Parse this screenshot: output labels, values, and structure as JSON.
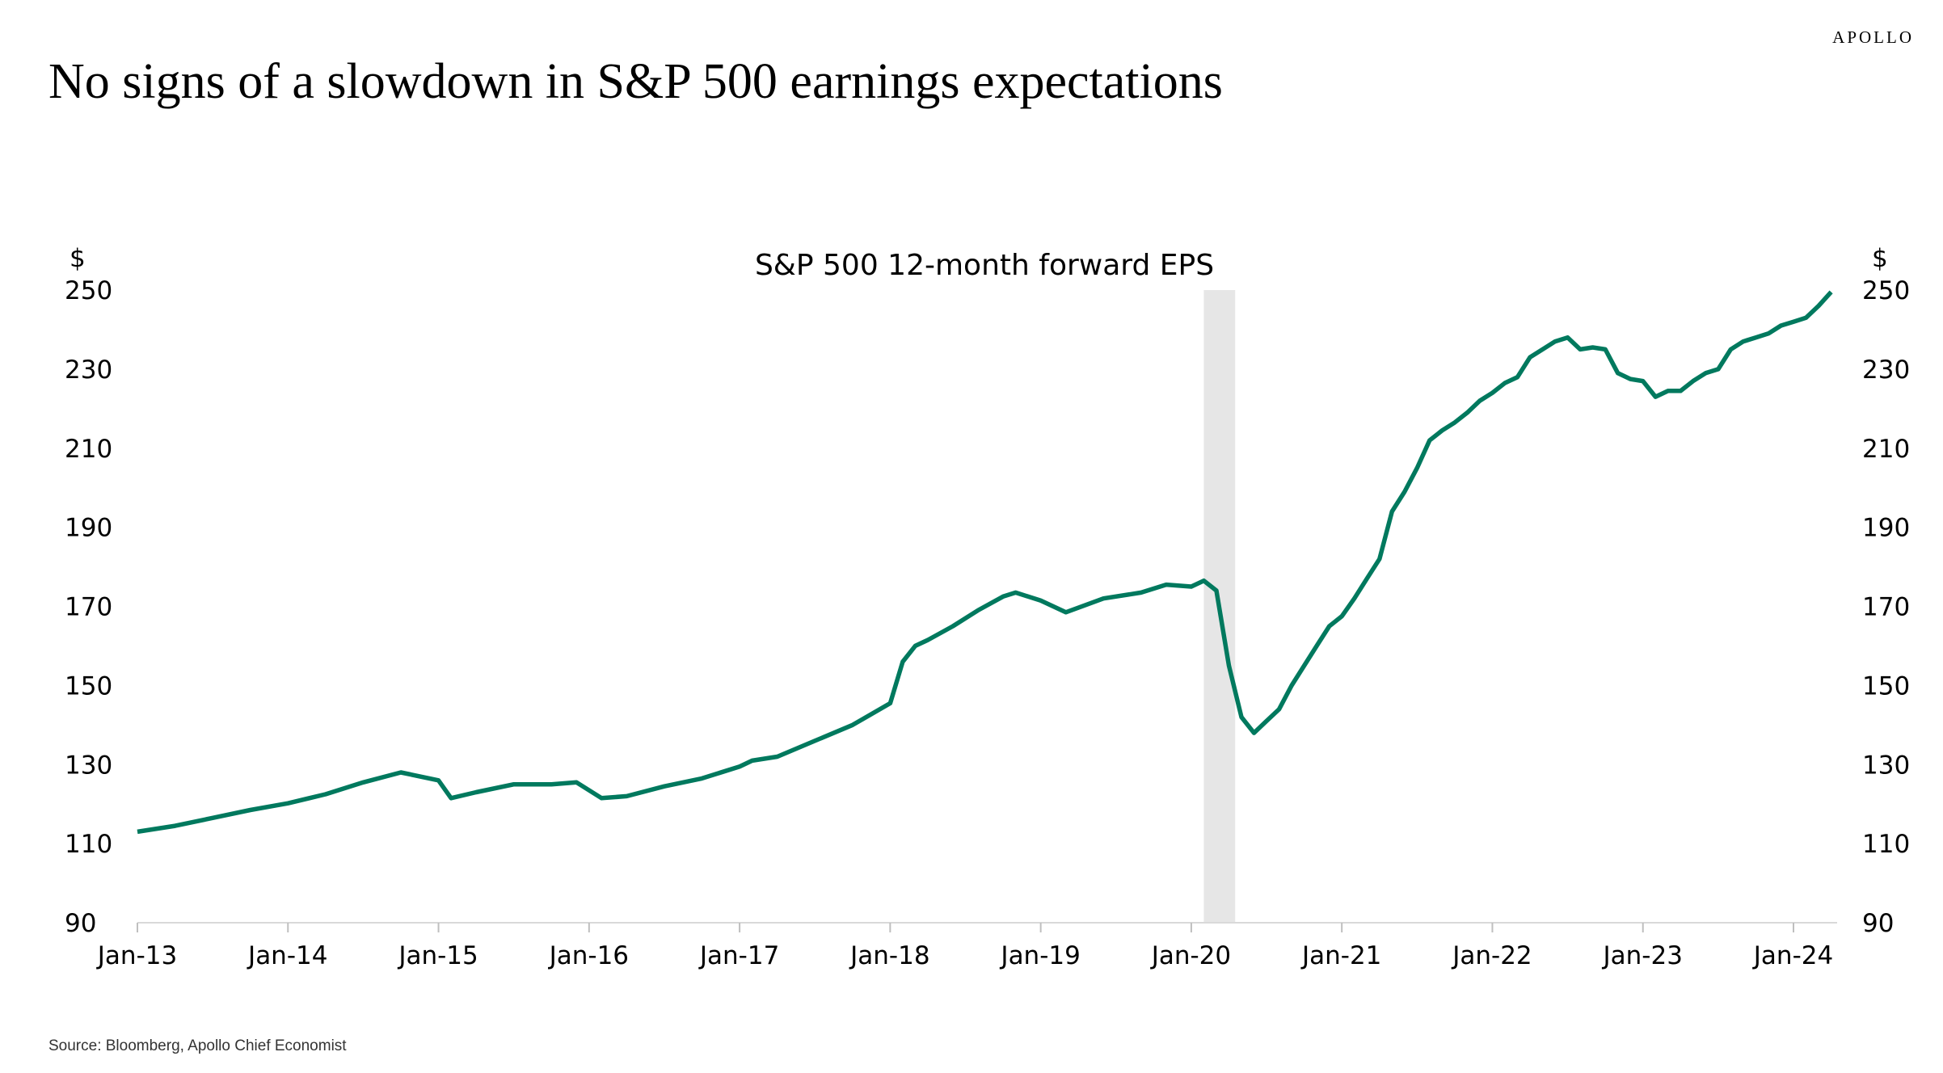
{
  "header": {
    "title": "No signs of a slowdown in S&P 500 earnings expectations",
    "logo": "APOLLO"
  },
  "footer": {
    "source": "Source: Bloomberg, Apollo Chief Economist"
  },
  "chart_data": {
    "type": "line",
    "title": "S&P 500 12-month forward EPS",
    "ylabel_left": "$",
    "ylabel_right": "$",
    "ylim": [
      90,
      250
    ],
    "yticks": [
      90,
      110,
      130,
      150,
      170,
      190,
      210,
      230,
      250
    ],
    "xlim": [
      "2013-01",
      "2024-04"
    ],
    "xticks": [
      "Jan-13",
      "Jan-14",
      "Jan-15",
      "Jan-16",
      "Jan-17",
      "Jan-18",
      "Jan-19",
      "Jan-20",
      "Jan-21",
      "Jan-22",
      "Jan-23",
      "Jan-24"
    ],
    "grid": false,
    "line_color": "#00795E",
    "recession_shading": {
      "start": "2020-02",
      "end": "2020-04",
      "color": "#E6E6E6"
    },
    "series": [
      {
        "x": [
          "2013-01",
          "2013-04",
          "2013-07",
          "2013-10",
          "2014-01",
          "2014-04",
          "2014-07",
          "2014-10",
          "2015-01",
          "2015-02",
          "2015-04",
          "2015-07",
          "2015-10",
          "2015-12",
          "2016-02",
          "2016-04",
          "2016-07",
          "2016-10",
          "2017-01",
          "2017-02",
          "2017-04",
          "2017-07",
          "2017-10",
          "2018-01",
          "2018-02",
          "2018-03",
          "2018-04",
          "2018-06",
          "2018-08",
          "2018-10",
          "2018-11",
          "2019-01",
          "2019-03",
          "2019-06",
          "2019-09",
          "2019-11",
          "2020-01",
          "2020-02",
          "2020-03",
          "2020-04",
          "2020-05",
          "2020-06",
          "2020-07",
          "2020-08",
          "2020-09",
          "2020-10",
          "2020-11",
          "2020-12",
          "2021-01",
          "2021-02",
          "2021-03",
          "2021-04",
          "2021-05",
          "2021-06",
          "2021-07",
          "2021-08",
          "2021-09",
          "2021-10",
          "2021-11",
          "2021-12",
          "2022-01",
          "2022-02",
          "2022-03",
          "2022-04",
          "2022-05",
          "2022-06",
          "2022-07",
          "2022-08",
          "2022-09",
          "2022-10",
          "2022-11",
          "2022-12",
          "2023-01",
          "2023-02",
          "2023-03",
          "2023-04",
          "2023-05",
          "2023-06",
          "2023-07",
          "2023-08",
          "2023-09",
          "2023-10",
          "2023-11",
          "2023-12",
          "2024-01",
          "2024-02",
          "2024-03",
          "2024-04"
        ],
        "values": [
          113,
          114.5,
          116.5,
          118.5,
          120.2,
          122.5,
          125.5,
          128,
          126,
          121.5,
          123,
          125,
          125,
          125.5,
          121.5,
          122,
          124.5,
          126.5,
          129.5,
          131,
          132,
          136,
          140,
          145.5,
          156,
          160,
          161.5,
          165,
          169,
          172.5,
          173.5,
          171.5,
          168.5,
          172,
          173.5,
          175.5,
          175,
          176.5,
          174,
          155,
          142,
          138,
          141,
          144,
          150,
          155,
          160,
          165,
          167.5,
          172,
          177,
          182,
          194,
          199,
          205,
          212,
          214.5,
          216.5,
          219,
          222,
          224,
          226.5,
          228,
          233,
          235,
          237,
          238,
          235,
          235.5,
          235,
          229,
          227.5,
          227,
          223,
          224.5,
          224.5,
          227,
          229,
          230,
          235,
          237,
          238,
          239,
          241,
          242,
          243,
          246,
          249.5
        ]
      }
    ]
  }
}
